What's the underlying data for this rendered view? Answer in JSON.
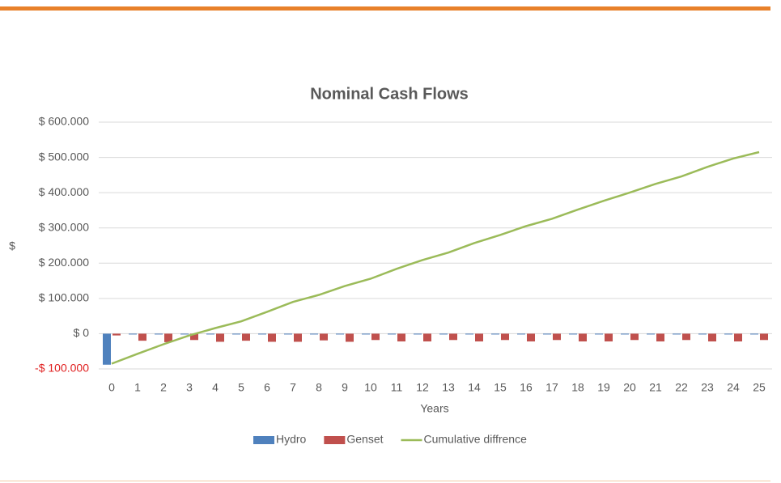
{
  "chart_data": {
    "type": "bar-line",
    "title": "Nominal Cash Flows",
    "x_label": "Years",
    "y_label": "$",
    "categories": [
      "0",
      "1",
      "2",
      "3",
      "4",
      "5",
      "6",
      "7",
      "8",
      "9",
      "10",
      "11",
      "12",
      "13",
      "14",
      "15",
      "16",
      "17",
      "18",
      "19",
      "20",
      "21",
      "22",
      "23",
      "24",
      "25"
    ],
    "series": [
      {
        "name": "Hydro",
        "type": "bar",
        "color": "#4f81bd",
        "values": [
          -88000,
          -2000,
          -2000,
          -2000,
          -2000,
          -2000,
          -2000,
          -2000,
          -2000,
          -2000,
          -2000,
          -2000,
          -2000,
          -2000,
          -2000,
          -2000,
          -2000,
          -2000,
          -2000,
          -2000,
          -2000,
          -2000,
          -2000,
          -2000,
          -2000,
          -2000
        ]
      },
      {
        "name": "Genset",
        "type": "bar",
        "color": "#c0504d",
        "values": [
          -5000,
          -20000,
          -24000,
          -18000,
          -23000,
          -20000,
          -23000,
          -23000,
          -19000,
          -23000,
          -18000,
          -22000,
          -22000,
          -18000,
          -22000,
          -18000,
          -22000,
          -18000,
          -22000,
          -22000,
          -18000,
          -22000,
          -18000,
          -22000,
          -22000,
          -18000
        ]
      },
      {
        "name": "Cumulative diffrence",
        "type": "line",
        "color": "#9bbb59",
        "values": [
          -85000,
          -57000,
          -30000,
          -5000,
          16000,
          35000,
          62000,
          90000,
          110000,
          135000,
          156000,
          184000,
          209000,
          230000,
          257000,
          280000,
          305000,
          326000,
          352000,
          377000,
          400000,
          425000,
          446000,
          473000,
          497000,
          515000
        ]
      }
    ],
    "ylim": [
      -100000,
      600000
    ],
    "yticks": [
      {
        "value": -100000,
        "label": "-$ 100.000"
      },
      {
        "value": 0,
        "label": "$ 0"
      },
      {
        "value": 100000,
        "label": "$ 100.000"
      },
      {
        "value": 200000,
        "label": "$ 200.000"
      },
      {
        "value": 300000,
        "label": "$ 300.000"
      },
      {
        "value": 400000,
        "label": "$ 400.000"
      },
      {
        "value": 500000,
        "label": "$ 500.000"
      },
      {
        "value": 600000,
        "label": "$ 600.000"
      }
    ],
    "negative_label_color": "#e02020",
    "grid": true,
    "legend": "bottom"
  }
}
